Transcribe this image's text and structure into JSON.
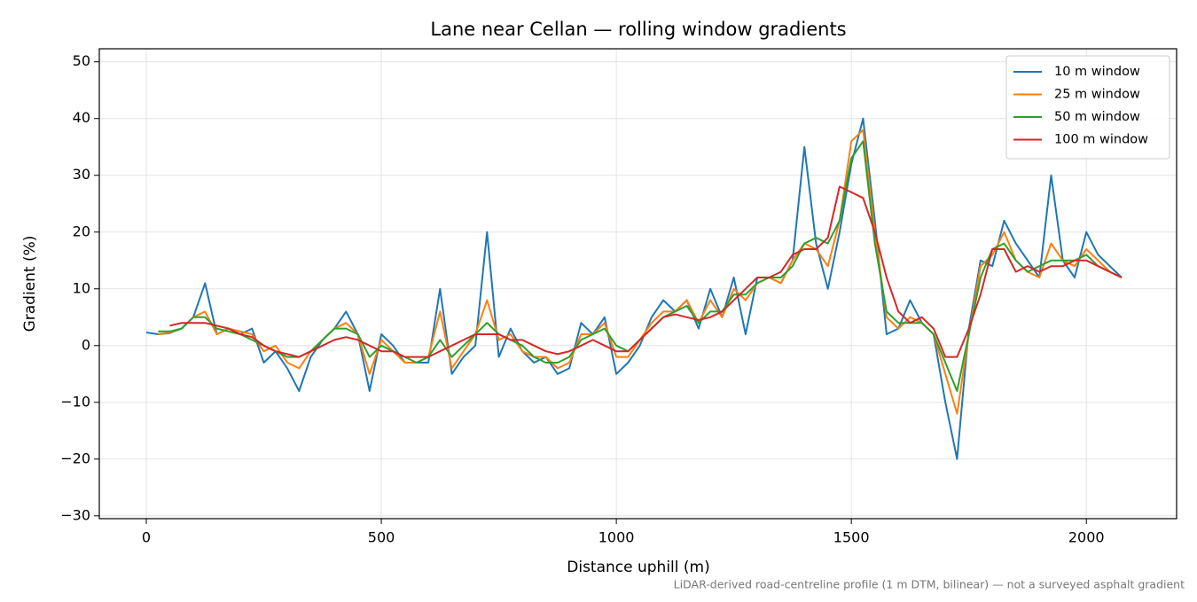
{
  "chart_data": {
    "type": "line",
    "title": "Lane near Cellan — rolling window gradients",
    "xlabel": "Distance uphill (m)",
    "ylabel": "Gradient (%)",
    "note": "LiDAR-derived road-centreline profile (1 m DTM, bilinear) — not a surveyed asphalt gradient",
    "x": [
      0,
      25,
      50,
      75,
      100,
      125,
      150,
      175,
      200,
      225,
      250,
      275,
      300,
      325,
      350,
      375,
      400,
      425,
      450,
      475,
      500,
      525,
      550,
      575,
      600,
      625,
      650,
      675,
      700,
      725,
      750,
      775,
      800,
      825,
      850,
      875,
      900,
      925,
      950,
      975,
      1000,
      1025,
      1050,
      1075,
      1100,
      1125,
      1150,
      1175,
      1200,
      1225,
      1250,
      1275,
      1300,
      1325,
      1350,
      1375,
      1400,
      1425,
      1450,
      1475,
      1500,
      1525,
      1550,
      1575,
      1600,
      1625,
      1650,
      1675,
      1700,
      1725,
      1750,
      1775,
      1800,
      1825,
      1850,
      1875,
      1900,
      1925,
      1950,
      1975,
      2000,
      2025,
      2050,
      2075
    ],
    "series": [
      {
        "name": "10 m window",
        "color": "#1f77b4",
        "values": [
          2.3,
          2,
          2.2,
          3,
          5,
          11,
          2,
          3,
          2,
          3,
          -3,
          -1,
          -4,
          -8,
          -2,
          1,
          3,
          6,
          2,
          -8,
          2,
          0,
          -3,
          -3,
          -3,
          10,
          -5,
          -2,
          0,
          20,
          -2,
          3,
          -1,
          -3,
          -2,
          -5,
          -4,
          4,
          2,
          5,
          -5,
          -3,
          0,
          5,
          8,
          6,
          8,
          3,
          10,
          5,
          12,
          2,
          12,
          12,
          11,
          15,
          35,
          18,
          10,
          20,
          32,
          40,
          22,
          2,
          3,
          8,
          4,
          2,
          -10,
          -20,
          3,
          15,
          14,
          22,
          18,
          15,
          12,
          30,
          15,
          12,
          20,
          16,
          14,
          12
        ]
      },
      {
        "name": "25 m window",
        "color": "#ff7f0e",
        "values": [
          null,
          2,
          2.3,
          3,
          5,
          6,
          2,
          3,
          2.5,
          2,
          -1,
          0,
          -3,
          -4,
          -1,
          1,
          3,
          4,
          2,
          -5,
          1,
          -1,
          -3,
          -3,
          -2,
          6,
          -4,
          -1,
          2,
          8,
          1,
          2,
          -1,
          -2,
          -2,
          -4,
          -3,
          2,
          2,
          4,
          -2,
          -2,
          1,
          4,
          6,
          6,
          8,
          4,
          8,
          5,
          10,
          8,
          11,
          12,
          11,
          15,
          18,
          17,
          14,
          22,
          36,
          38,
          20,
          5,
          3,
          5,
          4,
          2,
          -5,
          -12,
          2,
          14,
          16,
          20,
          15,
          13,
          12,
          18,
          15,
          14,
          17,
          15,
          13,
          12
        ]
      },
      {
        "name": "50 m window",
        "color": "#2ca02c",
        "values": [
          null,
          2.5,
          2.5,
          3,
          5,
          5,
          3,
          2.5,
          2,
          1,
          0,
          -1,
          -2,
          -2,
          -1,
          1,
          3,
          3,
          2,
          -2,
          0,
          -1,
          -2,
          -3,
          -2,
          1,
          -2,
          0,
          2,
          4,
          2,
          1,
          0,
          -2,
          -3,
          -3,
          -2,
          1,
          2,
          3,
          0,
          -1,
          1,
          3,
          5,
          6,
          7,
          4,
          6,
          6,
          9,
          9,
          11,
          12,
          12,
          14,
          18,
          19,
          18,
          22,
          33,
          36,
          18,
          6,
          4,
          4,
          4,
          2,
          -3,
          -8,
          2,
          12,
          17,
          18,
          15,
          13,
          14,
          15,
          15,
          15,
          16,
          14,
          13,
          12
        ]
      },
      {
        "name": "100 m window",
        "color": "#d62728",
        "values": [
          null,
          null,
          3.5,
          4,
          4,
          4,
          3.5,
          3,
          2,
          1.5,
          0,
          -1,
          -1.5,
          -2,
          -1,
          0,
          1,
          1.5,
          1,
          0,
          -1,
          -1,
          -2,
          -2,
          -2,
          -1,
          0,
          1,
          2,
          2,
          2,
          1,
          1,
          0,
          -1,
          -1.5,
          -1,
          0,
          1,
          0,
          -1,
          -1,
          1,
          3,
          5,
          5.5,
          5,
          4.5,
          5,
          6,
          8,
          10,
          12,
          12,
          13,
          16,
          17,
          17,
          19,
          28,
          27,
          26,
          20,
          12,
          6,
          4,
          5,
          3,
          -2,
          -2,
          3,
          9,
          17,
          17,
          13,
          14,
          13,
          14,
          14,
          15,
          15,
          14,
          13,
          12
        ]
      }
    ],
    "xlim": [
      -100,
      2192
    ],
    "xticks": [
      0,
      500,
      1000,
      1500,
      2000
    ],
    "ylim": [
      -30.5,
      52.3
    ],
    "yticks": [
      {
        "value": -30,
        "label": "−30"
      },
      {
        "value": -20,
        "label": "−20"
      },
      {
        "value": -10,
        "label": "−10"
      },
      0,
      10,
      20,
      30,
      40,
      50
    ],
    "grid": true,
    "legend": "upper right"
  }
}
